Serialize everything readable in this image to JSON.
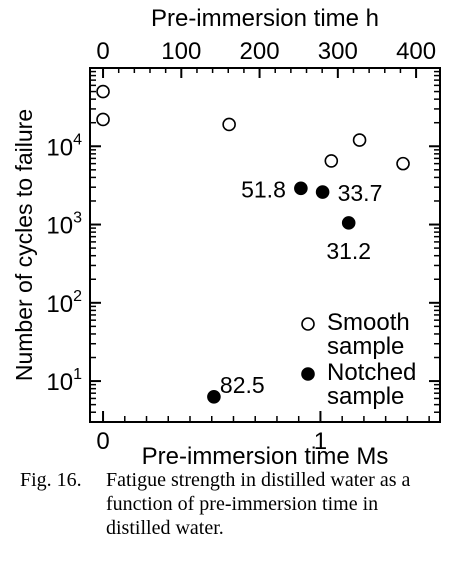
{
  "chart_data": {
    "type": "scatter",
    "title": "",
    "xlabel": "Pre-immersion time Ms",
    "x2label": "Pre-immersion time h",
    "ylabel": "Number of cycles to failure",
    "xlim": [
      -0.06,
      1.55
    ],
    "x_ticks": [
      "0",
      "1"
    ],
    "x2_ticks": [
      "0",
      "100",
      "200",
      "300",
      "400"
    ],
    "y_scale": "log",
    "ylim": [
      3,
      100000
    ],
    "y_ticks": [
      {
        "base": "10",
        "exp": "1",
        "value": 10
      },
      {
        "base": "10",
        "exp": "2",
        "value": 100
      },
      {
        "base": "10",
        "exp": "3",
        "value": 1000
      },
      {
        "base": "10",
        "exp": "4",
        "value": 10000
      }
    ],
    "series": [
      {
        "name": "Smooth sample",
        "legend_line1": "Smooth",
        "legend_line2": "sample",
        "marker": "open-circle",
        "points": [
          {
            "x": 0.0,
            "y": 50000
          },
          {
            "x": 0.0,
            "y": 22000
          },
          {
            "x": 0.58,
            "y": 19000
          },
          {
            "x": 1.05,
            "y": 6500
          },
          {
            "x": 1.18,
            "y": 12000
          },
          {
            "x": 1.38,
            "y": 6000
          }
        ]
      },
      {
        "name": "Notched sample",
        "legend_line1": "Notched",
        "legend_line2": "sample",
        "marker": "filled-circle",
        "points": [
          {
            "x": 0.51,
            "y": 6.3,
            "label": "82.5"
          },
          {
            "x": 0.91,
            "y": 2900,
            "label": "51.8"
          },
          {
            "x": 1.01,
            "y": 2600,
            "label": "33.7"
          },
          {
            "x": 1.13,
            "y": 1050,
            "label": "31.2"
          }
        ]
      }
    ],
    "grid": false,
    "legend_position": "bottom-right"
  },
  "caption": {
    "number": "Fig. 16.",
    "text": "Fatigue strength in distilled water as a function of pre-immersion time in distilled water."
  }
}
